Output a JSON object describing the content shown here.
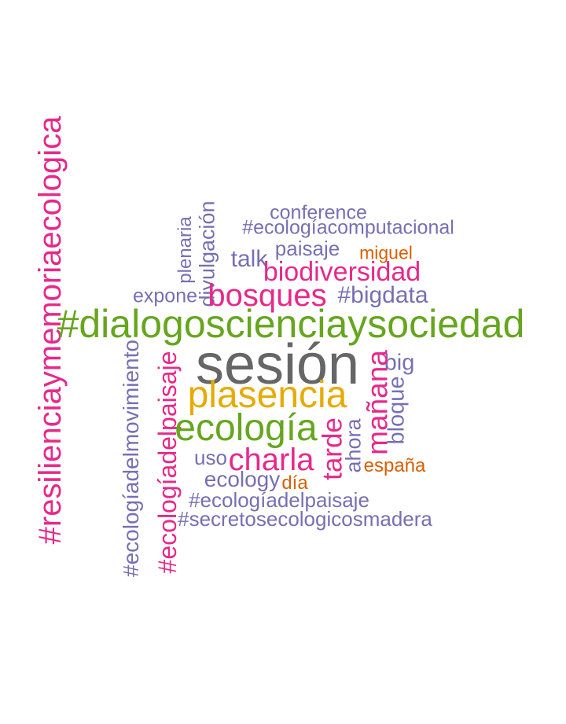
{
  "colors": {
    "green": "#66a61e",
    "gray": "#666666",
    "yellow": "#e6ab02",
    "pink": "#e7298a",
    "purple": "#7570b3",
    "orange": "#d95f02"
  },
  "words": {
    "dialogos": "#dialogoscienciaysociedad",
    "sesion": "sesión",
    "plasencia": "plasencia",
    "ecologia": "ecología",
    "resiliencia": "#resilienciaymemoriaecologica",
    "ecologiadelpaisaje_v": "#ecologíadelpaisaje",
    "movimiento": "#ecologíadelmovimiento",
    "bosques": "bosques",
    "biodiversidad": "biodiversidad",
    "charla": "charla",
    "manana": "mañana",
    "tarde": "tarde",
    "divulgacion": "divulgación",
    "plenaria": "plenaria",
    "conference": "conference",
    "ecologiacomputacional": "#ecologíacomputacional",
    "paisaje": "paisaje",
    "talk": "talk",
    "miguel": "miguel",
    "expone": "expone",
    "bigdata": "#bigdata",
    "big": "big",
    "bloque": "bloque",
    "ahora": "ahora",
    "espana": "españa",
    "uso": "uso",
    "ecology": "ecology",
    "dia": "día",
    "ecologiadelpaisaje_h": "#ecologíadelpaisaje",
    "secretos": "#secretosecologicosmadera"
  }
}
